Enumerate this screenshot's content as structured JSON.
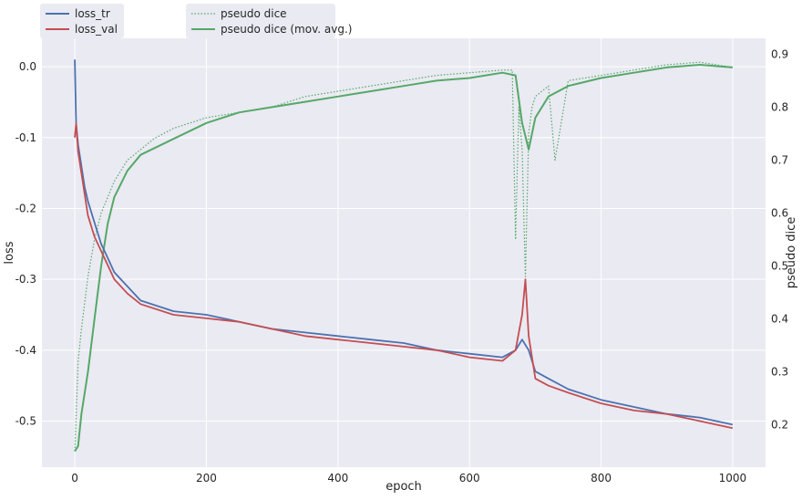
{
  "chart_data": {
    "type": "line",
    "xlabel": "epoch",
    "ylabel_left": "loss",
    "ylabel_right": "pseudo dice",
    "xlim": [
      -50,
      1050
    ],
    "ylim_left": [
      -0.565,
      0.04
    ],
    "ylim_right": [
      0.12,
      0.93
    ],
    "x_ticks": [
      0,
      200,
      400,
      600,
      800,
      1000
    ],
    "y_ticks_left": [
      0.0,
      -0.1,
      -0.2,
      -0.3,
      -0.4,
      -0.5
    ],
    "y_ticks_right": [
      0.9,
      0.8,
      0.7,
      0.6,
      0.5,
      0.4,
      0.3,
      0.2
    ],
    "grid": true,
    "legend_left": [
      "loss_tr",
      "loss_val"
    ],
    "legend_right": [
      "pseudo dice",
      "pseudo dice (mov. avg.)"
    ],
    "colors": {
      "loss_tr": "#4c72b0",
      "loss_val": "#c44e52",
      "pseudo_dice": "#55a868",
      "pseudo_dice_ma": "#55a868",
      "plot_bg": "#eaeaf2",
      "grid": "#ffffff"
    },
    "series": [
      {
        "name": "loss_tr",
        "axis": "left",
        "x": [
          0,
          2,
          5,
          10,
          15,
          20,
          30,
          40,
          50,
          60,
          80,
          100,
          150,
          200,
          250,
          300,
          350,
          400,
          450,
          500,
          550,
          600,
          650,
          670,
          680,
          690,
          700,
          720,
          750,
          800,
          850,
          900,
          950,
          1000
        ],
        "y": [
          0.01,
          -0.08,
          -0.11,
          -0.14,
          -0.17,
          -0.19,
          -0.22,
          -0.25,
          -0.27,
          -0.29,
          -0.31,
          -0.33,
          -0.345,
          -0.35,
          -0.36,
          -0.37,
          -0.375,
          -0.38,
          -0.385,
          -0.39,
          -0.4,
          -0.405,
          -0.41,
          -0.4,
          -0.385,
          -0.4,
          -0.43,
          -0.44,
          -0.455,
          -0.47,
          -0.48,
          -0.49,
          -0.495,
          -0.505
        ]
      },
      {
        "name": "loss_val",
        "axis": "left",
        "x": [
          0,
          2,
          5,
          10,
          15,
          20,
          30,
          40,
          50,
          60,
          80,
          100,
          150,
          200,
          250,
          300,
          350,
          400,
          450,
          500,
          550,
          600,
          650,
          670,
          680,
          685,
          690,
          700,
          720,
          750,
          800,
          850,
          900,
          950,
          1000
        ],
        "y": [
          -0.1,
          -0.08,
          -0.12,
          -0.15,
          -0.18,
          -0.21,
          -0.24,
          -0.26,
          -0.28,
          -0.3,
          -0.32,
          -0.335,
          -0.35,
          -0.355,
          -0.36,
          -0.37,
          -0.38,
          -0.385,
          -0.39,
          -0.395,
          -0.4,
          -0.41,
          -0.415,
          -0.4,
          -0.35,
          -0.3,
          -0.38,
          -0.44,
          -0.45,
          -0.46,
          -0.475,
          -0.485,
          -0.49,
          -0.5,
          -0.51
        ]
      },
      {
        "name": "pseudo dice",
        "axis": "right",
        "x": [
          0,
          5,
          10,
          15,
          20,
          30,
          40,
          50,
          60,
          70,
          80,
          100,
          120,
          150,
          200,
          250,
          300,
          350,
          400,
          450,
          500,
          550,
          600,
          650,
          665,
          670,
          675,
          680,
          685,
          690,
          695,
          700,
          710,
          720,
          730,
          750,
          800,
          850,
          900,
          950,
          1000
        ],
        "y": [
          0.15,
          0.32,
          0.38,
          0.43,
          0.48,
          0.55,
          0.6,
          0.63,
          0.66,
          0.68,
          0.7,
          0.72,
          0.74,
          0.76,
          0.78,
          0.79,
          0.8,
          0.82,
          0.83,
          0.84,
          0.85,
          0.86,
          0.865,
          0.87,
          0.87,
          0.55,
          0.8,
          0.72,
          0.48,
          0.75,
          0.8,
          0.82,
          0.83,
          0.84,
          0.7,
          0.85,
          0.86,
          0.87,
          0.88,
          0.885,
          0.875
        ]
      },
      {
        "name": "pseudo dice (mov. avg.)",
        "axis": "right",
        "x": [
          0,
          5,
          10,
          20,
          30,
          40,
          50,
          60,
          80,
          100,
          150,
          200,
          250,
          300,
          350,
          400,
          450,
          500,
          550,
          600,
          650,
          670,
          680,
          690,
          700,
          720,
          750,
          800,
          850,
          900,
          950,
          1000
        ],
        "y": [
          0.15,
          0.16,
          0.22,
          0.3,
          0.4,
          0.5,
          0.58,
          0.63,
          0.68,
          0.71,
          0.74,
          0.77,
          0.79,
          0.8,
          0.81,
          0.82,
          0.83,
          0.84,
          0.85,
          0.855,
          0.865,
          0.86,
          0.77,
          0.72,
          0.78,
          0.82,
          0.84,
          0.855,
          0.865,
          0.875,
          0.88,
          0.875
        ]
      }
    ]
  }
}
